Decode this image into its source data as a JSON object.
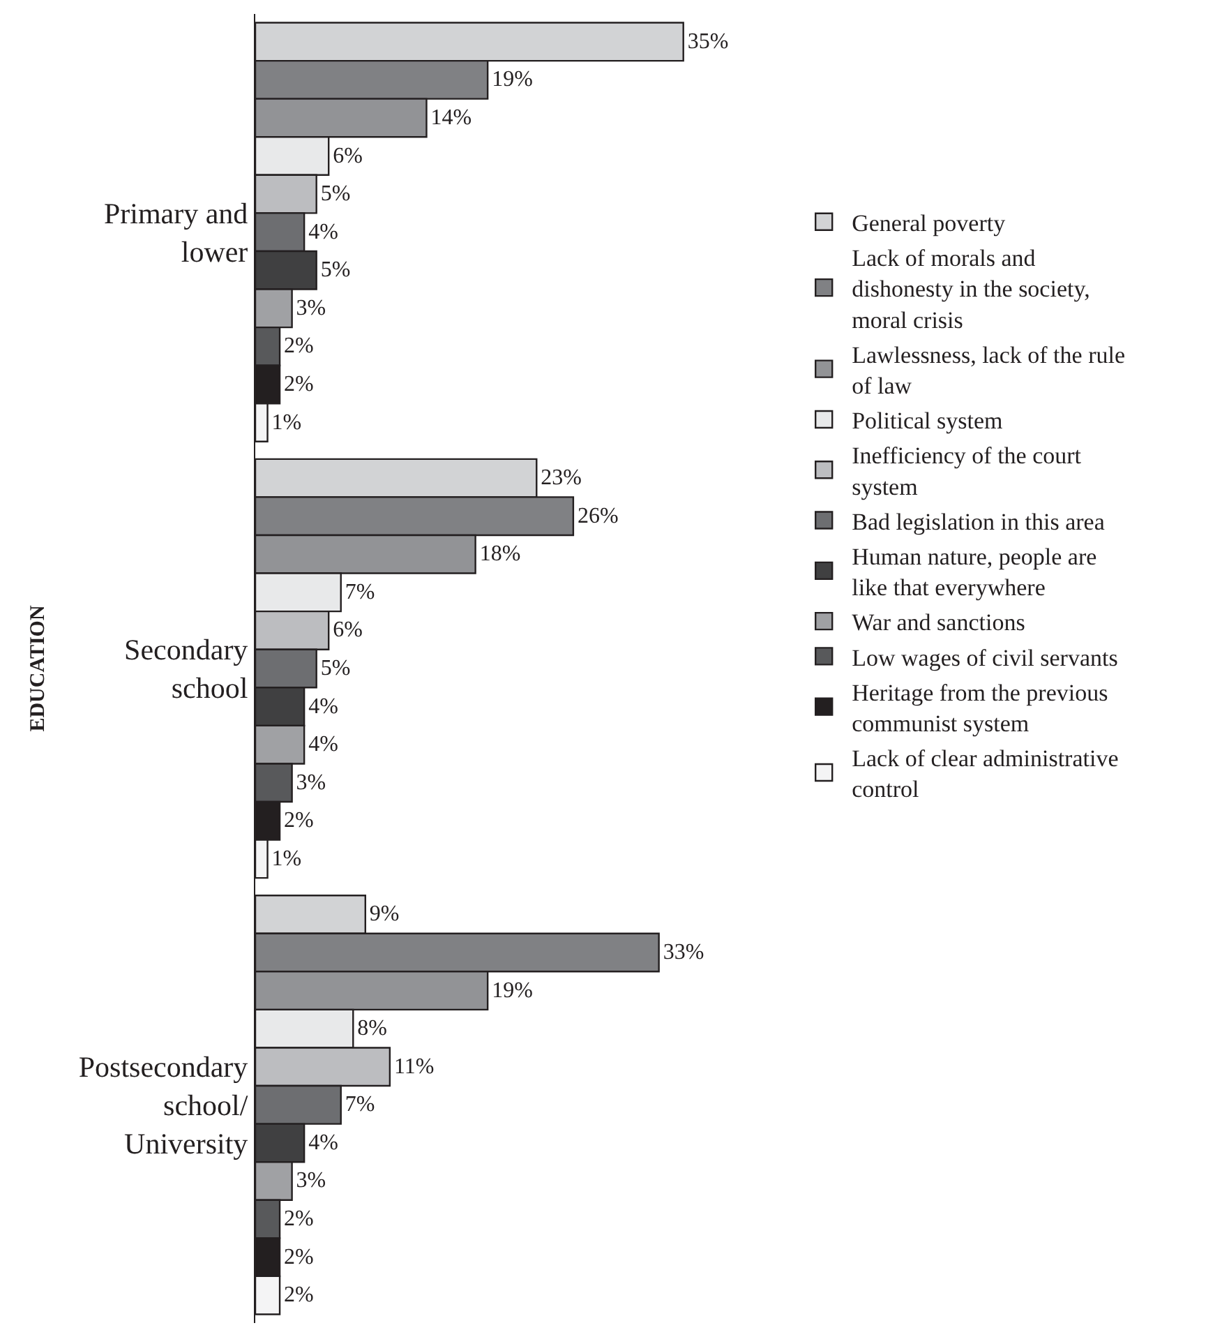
{
  "chart_data": {
    "type": "bar",
    "orientation": "horizontal",
    "ylabel": "EDUCATION",
    "categories": [
      "Primary and\nlower",
      "Secondary\nschool",
      "Postsecondary\nschool/\nUniversity"
    ],
    "tick_labels": "y",
    "legend": "right",
    "series": [
      {
        "name": "General poverty",
        "color": "#d2d3d5",
        "values": [
          35,
          23,
          9
        ],
        "value_labels": [
          "35%",
          "23%",
          "9%"
        ]
      },
      {
        "name": "Lack of morals and\ndishonesty in the society,\nmoral crisis",
        "color": "#808184",
        "values": [
          19,
          26,
          33
        ],
        "value_labels": [
          "19%",
          "26%",
          "33%"
        ]
      },
      {
        "name": "Lawlessness, lack of the rule\nof law",
        "color": "#929396",
        "values": [
          14,
          18,
          19
        ],
        "value_labels": [
          "14%",
          "18%",
          "19%"
        ]
      },
      {
        "name": "Political system",
        "color": "#e8e9ea",
        "values": [
          6,
          7,
          8
        ],
        "value_labels": [
          "6%",
          "7%",
          "8%"
        ]
      },
      {
        "name": "Inefficiency of the court\nsystem",
        "color": "#bcbdc0",
        "values": [
          5,
          6,
          11
        ],
        "value_labels": [
          "5%",
          "6%",
          "11%"
        ]
      },
      {
        "name": "Bad legislation in this area",
        "color": "#6d6e71",
        "values": [
          4,
          5,
          7
        ],
        "value_labels": [
          "4%",
          "5%",
          "7%"
        ]
      },
      {
        "name": "Human nature, people are\nlike that everywhere",
        "color": "#404041",
        "values": [
          5,
          4,
          4
        ],
        "value_labels": [
          "5%",
          "4%",
          "4%"
        ]
      },
      {
        "name": "War and sanctions",
        "color": "#a0a1a4",
        "values": [
          3,
          4,
          3
        ],
        "value_labels": [
          "3%",
          "4%",
          "3%"
        ]
      },
      {
        "name": "Low wages of civil servants",
        "color": "#58595b",
        "values": [
          2,
          3,
          2
        ],
        "value_labels": [
          "2%",
          "3%",
          "2%"
        ]
      },
      {
        "name": "Heritage from the previous\ncommunist system",
        "color": "#231f20",
        "values": [
          2,
          2,
          2
        ],
        "value_labels": [
          "2%",
          "2%",
          "2%"
        ]
      },
      {
        "name": "Lack of clear administrative\ncontrol",
        "color": "#f4f4f5",
        "values": [
          1,
          1,
          2
        ],
        "value_labels": [
          "1%",
          "1%",
          "2%"
        ]
      }
    ]
  }
}
